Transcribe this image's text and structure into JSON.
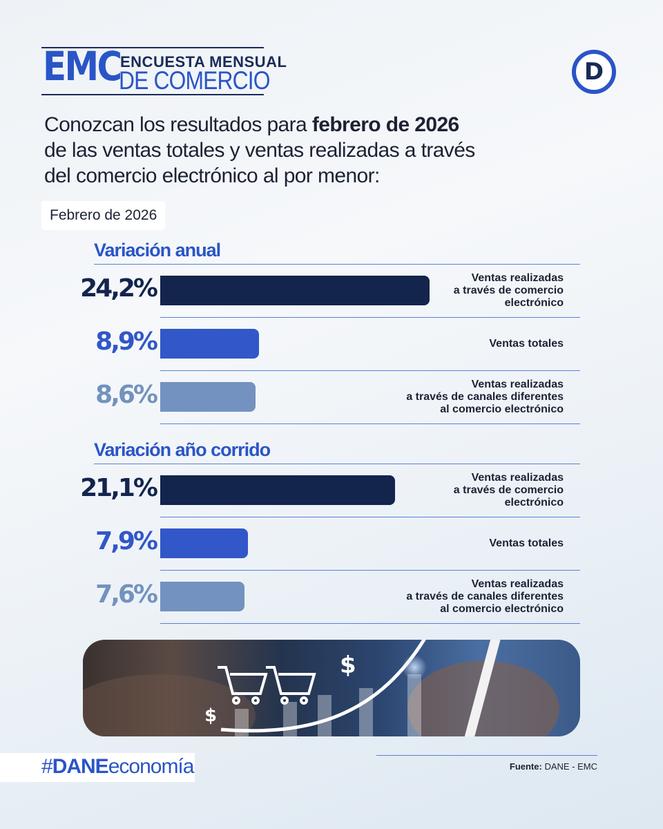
{
  "header": {
    "logo_abbr": "EMC",
    "logo_line1": "ENCUESTA MENSUAL",
    "logo_line2": "DE COMERCIO",
    "dane_logo": "D"
  },
  "intro": {
    "before_bold": "Conozcan los resultados para ",
    "bold": "febrero de 2026",
    "after_bold": " de las ventas totales y ventas realizadas a través del comercio electrónico al por menor:"
  },
  "date_label": "Febrero de 2026",
  "colors": {
    "ecommerce": "#13244d",
    "total": "#3157c8",
    "other_channels": "#7392bf",
    "accent": "#2a55c7"
  },
  "chart_data": [
    {
      "type": "bar",
      "orientation": "horizontal",
      "title": "Variación anual",
      "categories": [
        "Ventas realizadas a través de comercio electrónico",
        "Ventas totales",
        "Ventas realizadas a través de canales diferentes al comercio electrónico"
      ],
      "values": [
        24.2,
        8.9,
        8.6
      ],
      "value_labels": [
        "24,2%",
        "8,9%",
        "8,6%"
      ],
      "unit": "%"
    },
    {
      "type": "bar",
      "orientation": "horizontal",
      "title": "Variación año corrido",
      "categories": [
        "Ventas realizadas a través de comercio electrónico",
        "Ventas totales",
        "Ventas realizadas a través de canales diferentes al comercio electrónico"
      ],
      "values": [
        21.1,
        7.9,
        7.6
      ],
      "value_labels": [
        "21,1%",
        "7,9%",
        "7,6%"
      ],
      "unit": "%"
    }
  ],
  "row_labels": [
    "Ventas realizadas\na través de comercio\nelectrónico",
    "Ventas totales",
    "Ventas realizadas\na través de canales diferentes\nal comercio electrónico"
  ],
  "footer": {
    "hashtag_prefix": "#",
    "hashtag_bold": "DANE",
    "hashtag_rest": "economía",
    "source_label": "Fuente:",
    "source_value": " DANE - EMC"
  },
  "banner_icons": [
    "shopping-cart-icon",
    "shopping-cart-icon",
    "dollar-icon",
    "dollar-icon",
    "rising-arrow-icon",
    "stylus-icon"
  ]
}
